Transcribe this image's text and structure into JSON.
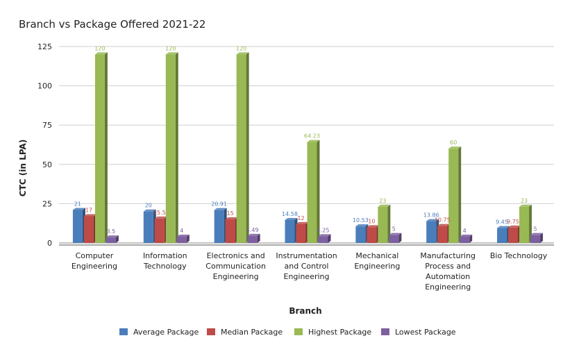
{
  "chart_data": {
    "type": "bar",
    "title": "Branch vs Package Offered 2021-22",
    "xlabel": "Branch",
    "ylabel": "CTC (in LPA)",
    "ylim": [
      0,
      125
    ],
    "yticks": [
      0,
      25,
      50,
      75,
      100,
      125
    ],
    "grid": true,
    "legend_position": "bottom",
    "categories": [
      [
        "Computer",
        "Engineering"
      ],
      [
        "Information",
        "Technology"
      ],
      [
        "Electronics and",
        "Communication",
        "Engineering"
      ],
      [
        "Instrumentation",
        "and Control",
        "Engineering"
      ],
      [
        "Mechanical",
        "Engineering"
      ],
      [
        "Manufacturing",
        "Process and",
        "Automation",
        "Engineering"
      ],
      [
        "Bio Technology"
      ]
    ],
    "series": [
      {
        "name": "Average Package",
        "color": "#4a7ebb",
        "values": [
          21,
          20,
          20.91,
          14.58,
          10.53,
          13.86,
          9.45
        ],
        "labels": [
          "21",
          "20",
          "20.91",
          "14.58",
          "10.53",
          "13.86",
          "9.45"
        ]
      },
      {
        "name": "Median Package",
        "color": "#be4b48",
        "values": [
          17,
          15.5,
          15,
          12,
          10,
          10.75,
          9.75
        ],
        "labels": [
          "17",
          "15.5",
          "15",
          "12",
          "10",
          "10.75",
          "9.75"
        ]
      },
      {
        "name": "Highest Package",
        "color": "#98b954",
        "values": [
          120,
          120,
          120,
          64.23,
          23,
          60,
          23
        ],
        "labels": [
          "120",
          "120",
          "120",
          "64.23",
          "23",
          "60",
          "23"
        ]
      },
      {
        "name": "Lowest Package",
        "color": "#7d60a0",
        "values": [
          3.5,
          4,
          4.49,
          4.25,
          5,
          4,
          5
        ],
        "labels": [
          "3.5",
          "4",
          "4.49",
          "4.25",
          "5",
          "4",
          "5"
        ]
      }
    ]
  }
}
